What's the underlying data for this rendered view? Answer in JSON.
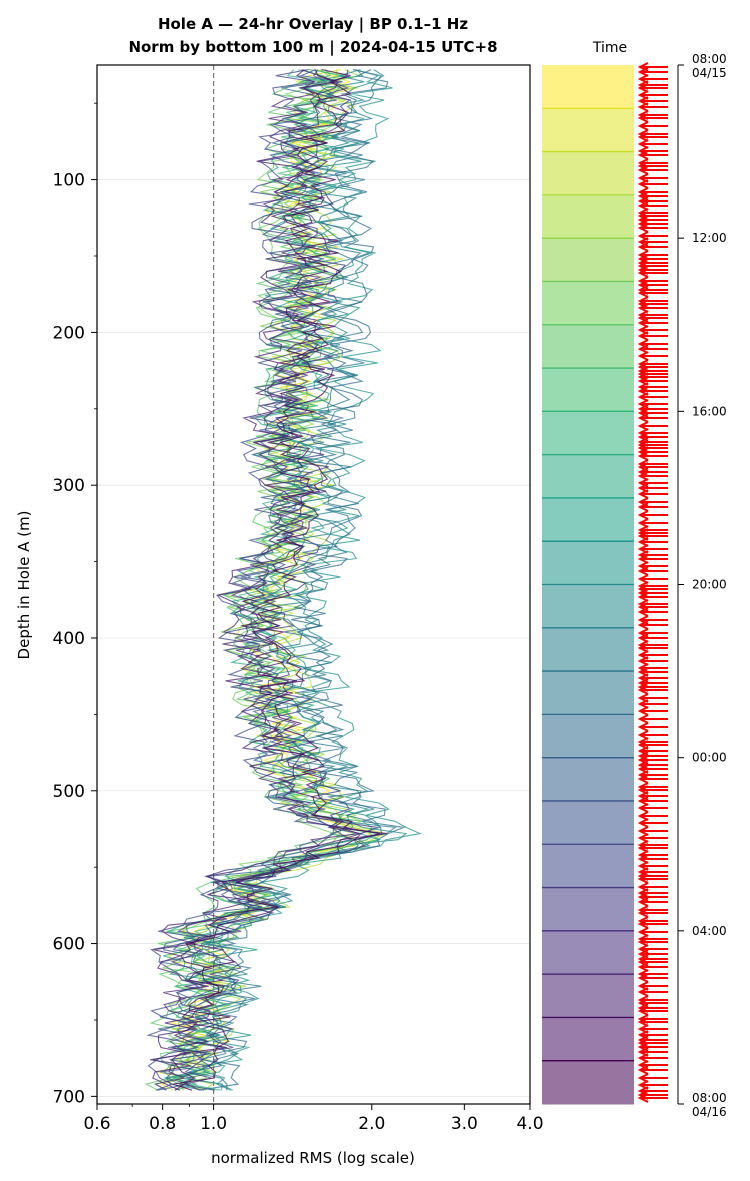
{
  "chart_data": {
    "type": "line",
    "title": [
      "Hole A — 24-hr Overlay  |  BP 0.1–1 Hz",
      "Norm by bottom 100 m  |  2024-04-15 UTC+8"
    ],
    "xlabel": "normalized RMS  (log scale)",
    "ylabel": "Depth in Hole A (m)",
    "x_scale": "log",
    "xlim": [
      0.6,
      4.0
    ],
    "ylim": [
      705,
      25
    ],
    "x_ticks": [
      0.6,
      0.8,
      1.0,
      2.0,
      3.0,
      4.0
    ],
    "x_tick_labels": [
      "0.6",
      "0.8",
      "1.0",
      "2.0",
      "3.0",
      "4.0"
    ],
    "y_ticks": [
      100,
      200,
      300,
      400,
      500,
      600,
      700
    ],
    "y_tick_labels": [
      "100",
      "200",
      "300",
      "400",
      "500",
      "600",
      "700"
    ],
    "reference_line_x": 1.0,
    "grid": "horizontal",
    "series_count": 24,
    "depth_profile": {
      "depths": [
        30,
        60,
        90,
        120,
        150,
        180,
        210,
        240,
        270,
        300,
        330,
        360,
        390,
        420,
        450,
        480,
        510,
        530,
        545,
        560,
        575,
        590,
        610,
        630,
        650,
        670,
        690,
        700
      ],
      "median_rms": [
        1.6,
        1.5,
        1.45,
        1.4,
        1.5,
        1.42,
        1.45,
        1.4,
        1.35,
        1.4,
        1.38,
        1.25,
        1.2,
        1.25,
        1.3,
        1.35,
        1.5,
        1.9,
        1.4,
        1.05,
        1.2,
        0.95,
        0.92,
        0.97,
        0.9,
        0.92,
        0.85,
        0.95
      ]
    },
    "colorbar": {
      "title": "Time",
      "colormap": "viridis",
      "ticks": [
        {
          "time": "08:00",
          "date": "04/15",
          "hours_after_start": 0
        },
        {
          "time": "12:00",
          "date": "",
          "hours_after_start": 4
        },
        {
          "time": "16:00",
          "date": "",
          "hours_after_start": 8
        },
        {
          "time": "20:00",
          "date": "",
          "hours_after_start": 12
        },
        {
          "time": "00:00",
          "date": "",
          "hours_after_start": 16
        },
        {
          "time": "04:00",
          "date": "",
          "hours_after_start": 20
        },
        {
          "time": "08:00",
          "date": "04/16",
          "hours_after_start": 24
        }
      ],
      "band_count": 24,
      "marker_color": "#ff0000"
    }
  }
}
